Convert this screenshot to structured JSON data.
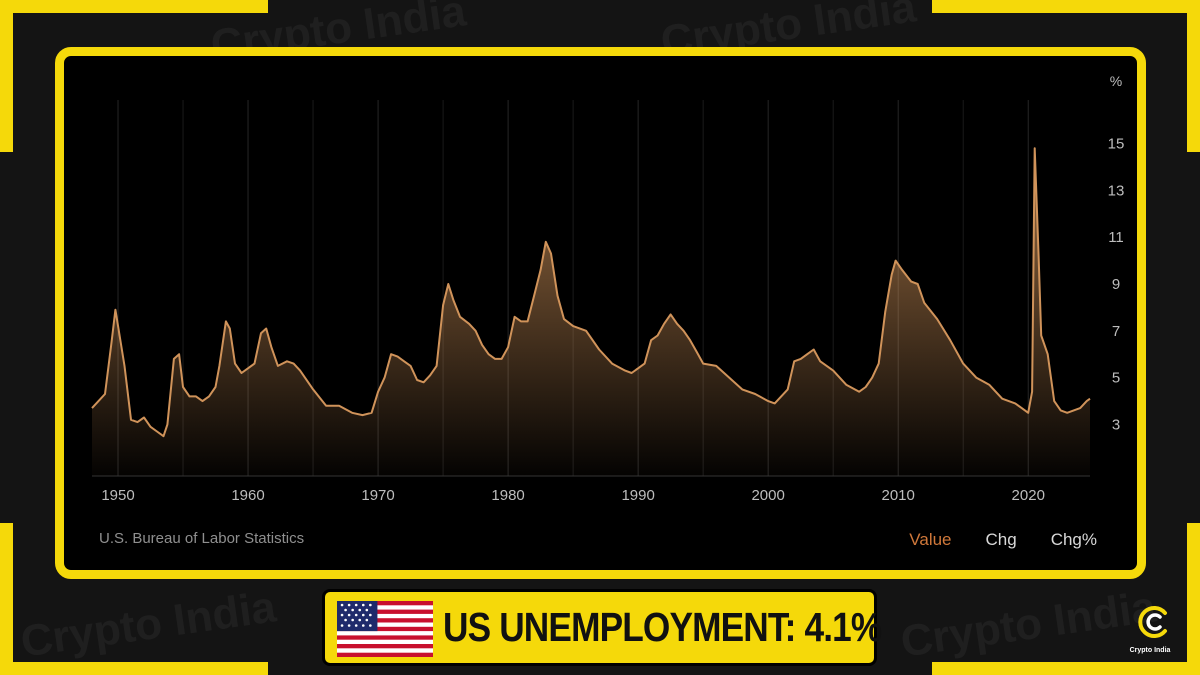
{
  "brand": {
    "watermark_text": "Crypto India",
    "logo_label": "Crypto India",
    "accent_color": "#f5d90a"
  },
  "chart_data": {
    "type": "area",
    "title": "",
    "xlabel": "",
    "ylabel": "%",
    "unit": "%",
    "xlim": [
      1948,
      2024.75
    ],
    "ylim": [
      0.8,
      16.6
    ],
    "x_ticks": [
      1950,
      1960,
      1970,
      1980,
      1990,
      2000,
      2010,
      2020
    ],
    "y_ticks": [
      3,
      5,
      7,
      9,
      11,
      13,
      15
    ],
    "grid": "vertical",
    "line_color": "#d0935a",
    "source": "U.S. Bureau of Labor Statistics",
    "tabs": [
      "Value",
      "Chg",
      "Chg%"
    ],
    "active_tab": "Value",
    "series": [
      {
        "x": [
          1948.0,
          1948.5,
          1949.0,
          1949.5,
          1949.8,
          1950.5,
          1951.0,
          1951.5,
          1952.0,
          1952.5,
          1953.0,
          1953.5,
          1953.8,
          1954.3,
          1954.7,
          1955.0,
          1955.5,
          1956.0,
          1956.5,
          1957.0,
          1957.5,
          1957.8,
          1958.3,
          1958.6,
          1959.0,
          1959.5,
          1960.0,
          1960.5,
          1961.0,
          1961.4,
          1961.8,
          1962.3,
          1963.0,
          1963.5,
          1964.0,
          1965.0,
          1966.0,
          1967.0,
          1968.0,
          1968.8,
          1969.5,
          1970.0,
          1970.5,
          1971.0,
          1971.5,
          1972.0,
          1972.5,
          1973.0,
          1973.5,
          1974.0,
          1974.5,
          1975.0,
          1975.4,
          1975.8,
          1976.3,
          1977.0,
          1977.5,
          1978.0,
          1978.5,
          1979.0,
          1979.5,
          1980.0,
          1980.5,
          1981.0,
          1981.5,
          1982.0,
          1982.5,
          1982.9,
          1983.3,
          1983.8,
          1984.3,
          1985.0,
          1986.0,
          1987.0,
          1988.0,
          1989.0,
          1989.5,
          1990.0,
          1990.5,
          1991.0,
          1991.5,
          1992.0,
          1992.5,
          1993.0,
          1993.5,
          1994.0,
          1994.5,
          1995.0,
          1996.0,
          1997.0,
          1998.0,
          1999.0,
          2000.0,
          2000.5,
          2001.0,
          2001.5,
          2002.0,
          2002.5,
          2003.0,
          2003.5,
          2004.0,
          2005.0,
          2006.0,
          2007.0,
          2007.5,
          2008.0,
          2008.5,
          2009.0,
          2009.5,
          2009.8,
          2010.3,
          2011.0,
          2011.5,
          2012.0,
          2013.0,
          2014.0,
          2015.0,
          2016.0,
          2017.0,
          2018.0,
          2019.0,
          2019.5,
          2020.0,
          2020.3,
          2020.5,
          2020.8,
          2021.0,
          2021.5,
          2022.0,
          2022.5,
          2023.0,
          2023.5,
          2024.0,
          2024.5,
          2024.75
        ],
        "y": [
          3.7,
          4.0,
          4.3,
          6.5,
          7.9,
          5.5,
          3.2,
          3.1,
          3.3,
          2.9,
          2.7,
          2.5,
          3.0,
          5.8,
          6.0,
          4.6,
          4.2,
          4.2,
          4.0,
          4.2,
          4.6,
          5.5,
          7.4,
          7.1,
          5.6,
          5.2,
          5.4,
          5.6,
          6.9,
          7.1,
          6.3,
          5.5,
          5.7,
          5.6,
          5.3,
          4.5,
          3.8,
          3.8,
          3.5,
          3.4,
          3.5,
          4.4,
          5.0,
          6.0,
          5.9,
          5.7,
          5.5,
          4.9,
          4.8,
          5.1,
          5.5,
          8.1,
          9.0,
          8.3,
          7.6,
          7.3,
          7.0,
          6.4,
          6.0,
          5.8,
          5.8,
          6.3,
          7.6,
          7.4,
          7.4,
          8.5,
          9.6,
          10.8,
          10.3,
          8.5,
          7.5,
          7.2,
          7.0,
          6.2,
          5.6,
          5.3,
          5.2,
          5.4,
          5.6,
          6.6,
          6.8,
          7.3,
          7.7,
          7.3,
          7.0,
          6.6,
          6.1,
          5.6,
          5.5,
          5.0,
          4.5,
          4.3,
          4.0,
          3.9,
          4.2,
          4.5,
          5.7,
          5.8,
          6.0,
          6.2,
          5.7,
          5.3,
          4.7,
          4.4,
          4.6,
          5.0,
          5.6,
          7.8,
          9.4,
          10.0,
          9.6,
          9.1,
          9.0,
          8.2,
          7.5,
          6.6,
          5.6,
          5.0,
          4.7,
          4.1,
          3.9,
          3.7,
          3.5,
          4.4,
          14.8,
          10.2,
          6.8,
          6.0,
          4.0,
          3.6,
          3.5,
          3.6,
          3.7,
          4.0,
          4.1
        ]
      }
    ]
  },
  "banner": {
    "headline": "US UNEMPLOYMENT: 4.1%",
    "flag": "us-flag"
  }
}
